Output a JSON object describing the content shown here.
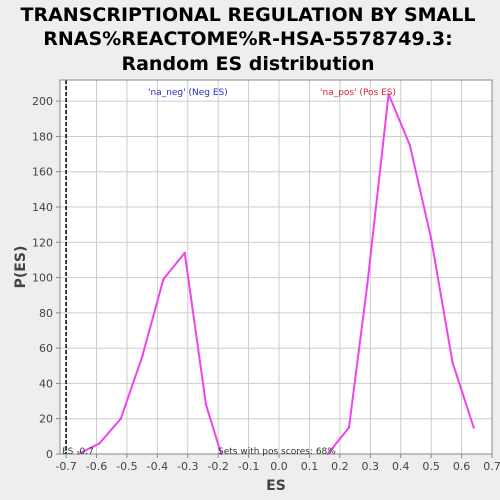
{
  "chart_data": {
    "type": "line",
    "title_lines": [
      "TRANSCRIPTIONAL REGULATION BY SMALL",
      "RNAS%REACTOME%R-HSA-5578749.3:",
      "Random ES distribution"
    ],
    "xlabel": "ES",
    "ylabel": "P(ES)",
    "xlim": [
      -0.72,
      0.7
    ],
    "ylim": [
      0,
      212
    ],
    "xticks": [
      -0.7,
      -0.6,
      -0.5,
      -0.4,
      -0.3,
      -0.2,
      -0.1,
      0.0,
      0.1,
      0.2,
      0.3,
      0.4,
      0.5,
      0.6,
      0.7
    ],
    "xtick_labels": [
      "-0.7",
      "-0.6",
      "-0.5",
      "-0.4",
      "-0.3",
      "-0.2",
      "-0.1",
      "0.0",
      "0.1",
      "0.2",
      "0.3",
      "0.4",
      "0.5",
      "0.6",
      "0.7"
    ],
    "yticks": [
      0,
      20,
      40,
      60,
      80,
      100,
      120,
      140,
      160,
      180,
      200
    ],
    "ytick_labels": [
      "0",
      "20",
      "40",
      "60",
      "80",
      "100",
      "120",
      "140",
      "160",
      "180",
      "200"
    ],
    "grid": true,
    "series": [
      {
        "name": "'na_neg' (Neg ES)",
        "color": "#ee44ee",
        "x": [
          -0.66,
          -0.59,
          -0.52,
          -0.45,
          -0.38,
          -0.31,
          -0.24,
          -0.19
        ],
        "y": [
          0,
          6,
          20,
          55,
          99,
          114,
          28,
          0
        ]
      },
      {
        "name": "'na_pos' (Pos ES)",
        "color": "#ee44ee",
        "x": [
          0.16,
          0.23,
          0.29,
          0.36,
          0.43,
          0.5,
          0.57,
          0.64
        ],
        "y": [
          0,
          15,
          96,
          204,
          175,
          122,
          52,
          15
        ]
      }
    ],
    "legend": [
      {
        "label": "'na_neg' (Neg ES)",
        "color": "#2a2acc"
      },
      {
        "label": "'na_pos' (Pos ES)",
        "color": "#dd2222"
      }
    ],
    "annotations": {
      "es_marker": {
        "x": -0.7,
        "label": "ES -0.7"
      },
      "footer": "Sets with pos scores: 68%"
    },
    "colors": {
      "background": "#eeeeee",
      "plot_background": "#ffffff",
      "grid": "#cccccc",
      "line": "#ee44ee"
    }
  }
}
